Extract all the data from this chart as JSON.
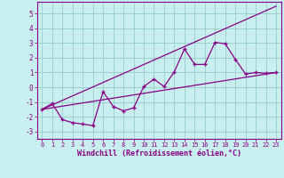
{
  "xlabel": "Windchill (Refroidissement éolien,°C)",
  "bg_color": "#c8eef0",
  "line_color": "#880088",
  "grid_color": "#99cccc",
  "xlim": [
    -0.5,
    23.5
  ],
  "ylim": [
    -3.5,
    5.8
  ],
  "yticks": [
    -3,
    -2,
    -1,
    0,
    1,
    2,
    3,
    4,
    5
  ],
  "xticks": [
    0,
    1,
    2,
    3,
    4,
    5,
    6,
    7,
    8,
    9,
    10,
    11,
    12,
    13,
    14,
    15,
    16,
    17,
    18,
    19,
    20,
    21,
    22,
    23
  ],
  "series1_x": [
    0,
    1,
    2,
    3,
    4,
    5,
    6,
    7,
    8,
    9,
    10,
    11,
    12,
    13,
    14,
    15,
    16,
    17,
    18,
    19,
    20,
    21,
    22,
    23
  ],
  "series1_y": [
    -1.5,
    -1.1,
    -2.2,
    -2.4,
    -2.5,
    -2.6,
    -0.3,
    -1.3,
    -1.6,
    -1.4,
    0.05,
    0.55,
    0.05,
    1.05,
    2.6,
    1.55,
    1.55,
    3.05,
    2.95,
    1.9,
    0.9,
    1.0,
    0.95,
    1.0
  ],
  "line1_x": [
    0,
    23
  ],
  "line1_y": [
    -1.5,
    1.0
  ],
  "line2_x": [
    0,
    23
  ],
  "line2_y": [
    -1.5,
    5.5
  ]
}
